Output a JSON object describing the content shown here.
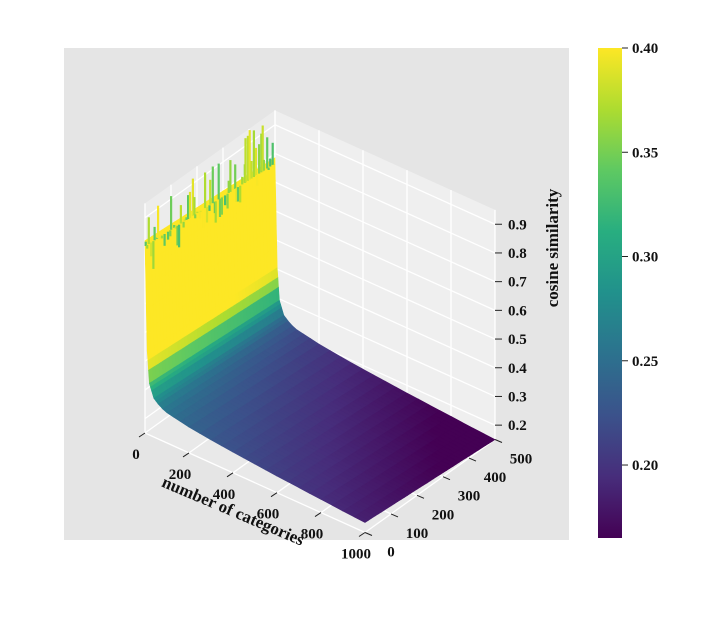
{
  "chart_data": {
    "type": "surface",
    "title": "",
    "x_axis": {
      "label": "number of categories",
      "range": [
        0,
        1000
      ],
      "ticks": [
        "0",
        "200",
        "400",
        "600",
        "800",
        "1000"
      ]
    },
    "y_axis": {
      "label": "",
      "range": [
        0,
        500
      ],
      "ticks": [
        "0",
        "100",
        "200",
        "300",
        "400",
        "500"
      ]
    },
    "z_axis": {
      "label": "cosine similarity",
      "range": [
        0.15,
        0.95
      ],
      "ticks": [
        "0.2",
        "0.3",
        "0.4",
        "0.5",
        "0.6",
        "0.7",
        "0.8",
        "0.9"
      ]
    },
    "colorbar": {
      "colormap": "viridis",
      "range": [
        0.165,
        0.4
      ],
      "ticks": [
        "0.20",
        "0.25",
        "0.30",
        "0.35",
        "0.40"
      ]
    },
    "surface_profile": {
      "x": [
        0,
        5,
        10,
        20,
        40,
        70,
        100,
        200,
        300,
        400,
        500,
        600,
        700,
        800,
        900,
        1000
      ],
      "z": [
        0.82,
        0.62,
        0.44,
        0.33,
        0.285,
        0.265,
        0.255,
        0.24,
        0.23,
        0.222,
        0.215,
        0.208,
        0.202,
        0.196,
        0.19,
        0.185
      ],
      "y_decline_total": 0.035
    },
    "grid": true,
    "pane_color": "#ebebeb"
  }
}
